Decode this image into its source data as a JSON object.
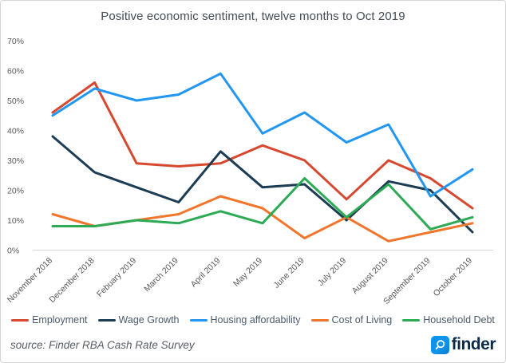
{
  "title": "Positive economic sentiment, twelve months to Oct 2019",
  "footer": {
    "source": "source: Finder RBA Cash Rate Survey",
    "brand": "finder"
  },
  "colors": {
    "employment_red": "#d8482f",
    "wage_growth_navy": "#1d3d55",
    "housing_blue": "#2196f3",
    "cost_of_living_orange": "#f1762b",
    "household_debt_green": "#2caa54",
    "axis_text": "#595959",
    "title_text": "#424c56",
    "axis_line": "#d6d6d6",
    "brand_navy": "#0c2b4a",
    "brand_blue": "#0e93ec"
  },
  "chart_data": {
    "type": "line",
    "title": "Positive economic sentiment, twelve months to Oct 2019",
    "categories": [
      "November 2018",
      "December 2018",
      "Febuary 2019",
      "March 2019",
      "April 2019",
      "May 2019",
      "June 2019",
      "July 2019",
      "August 2019",
      "September 2019",
      "October 2019"
    ],
    "series": [
      {
        "name": "Employment",
        "color": "#d8482f",
        "values": [
          46,
          56,
          29,
          28,
          29,
          35,
          30,
          17,
          30,
          24,
          14
        ]
      },
      {
        "name": "Wage Growth",
        "color": "#1d3d55",
        "values": [
          38,
          26,
          21,
          16,
          33,
          21,
          22,
          10,
          23,
          20,
          6
        ]
      },
      {
        "name": "Housing affordability",
        "color": "#2196f3",
        "values": [
          45,
          54,
          50,
          52,
          59,
          39,
          46,
          36,
          42,
          18,
          27
        ]
      },
      {
        "name": "Cost of Living",
        "color": "#f1762b",
        "values": [
          12,
          8,
          10,
          12,
          18,
          14,
          4,
          11,
          3,
          6,
          9
        ]
      },
      {
        "name": "Household Debt",
        "color": "#2caa54",
        "values": [
          8,
          8,
          10,
          9,
          13,
          9,
          24,
          11,
          22,
          7,
          11
        ]
      }
    ],
    "xlabel": "",
    "ylabel": "",
    "ylim": [
      0,
      70
    ],
    "y_ticks": [
      "0%",
      "10%",
      "20%",
      "30%",
      "40%",
      "50%",
      "60%",
      "70%"
    ],
    "y_tick_step": 10,
    "grid": false,
    "legend_position": "bottom",
    "x_label_rotation": -45
  }
}
